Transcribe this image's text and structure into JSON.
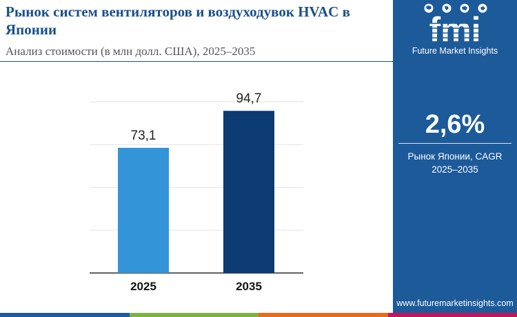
{
  "header": {
    "title": "Рынок систем вентиляторов и воздуходувок HVAC в Японии",
    "subtitle": "Анализ стоимости (в млн долл. США), 2025–2035"
  },
  "sidebar": {
    "logo_text": "fmi",
    "logo_tagline": "Future Market Insights",
    "cagr_value": "2,6%",
    "cagr_label_line1": "Рынок Японии, CAGR",
    "cagr_label_line2": "2025–2035",
    "website": "www.futuremarketinsights.com"
  },
  "colors": {
    "title": "#1a4f8b",
    "sidebar": "#1c5a9a",
    "bar_2025": "#3394d8",
    "bar_2035": "#0c3a73",
    "footer": [
      "#1c5a9a",
      "#7cb342",
      "#e86a1c",
      "#c2185b"
    ]
  },
  "chart_data": {
    "type": "bar",
    "categories": [
      "2025",
      "2035"
    ],
    "values": [
      73.1,
      94.7
    ],
    "value_labels": [
      "73,1",
      "94,7"
    ],
    "title": "",
    "xlabel": "",
    "ylabel": "",
    "ylim": [
      0,
      100
    ],
    "grid": true,
    "legend": "none"
  }
}
